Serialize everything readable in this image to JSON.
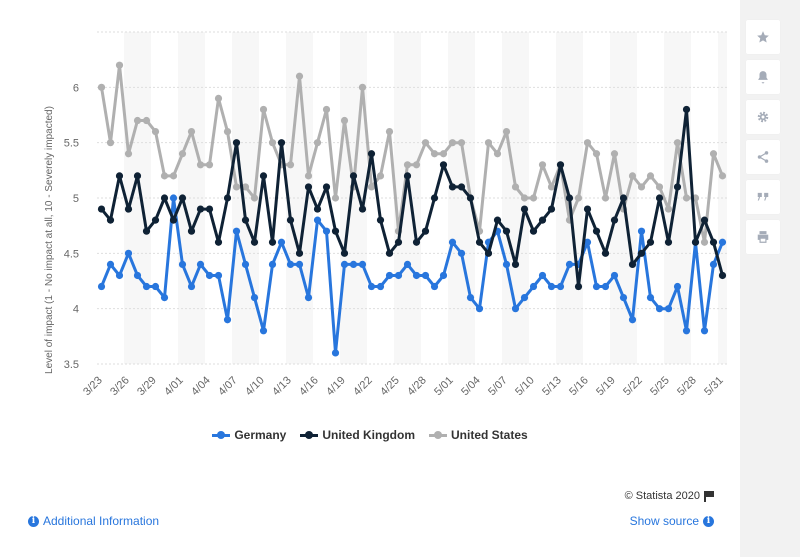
{
  "chart_data": {
    "type": "line",
    "title": "",
    "xlabel": "",
    "ylabel": "Level of impact (1 - No impact at all, 10 - Severely impacted)",
    "ylim": [
      3.5,
      6.5
    ],
    "yticks": [
      3.5,
      4,
      4.5,
      5,
      5.5,
      6
    ],
    "grid": true,
    "legend_position": "bottom",
    "x_tick_labels": [
      "3/23",
      "3/26",
      "3/29",
      "4/01",
      "4/04",
      "4/07",
      "4/10",
      "4/13",
      "4/16",
      "4/19",
      "4/22",
      "4/25",
      "4/28",
      "5/01",
      "5/04",
      "5/07",
      "5/10",
      "5/13",
      "5/16",
      "5/19",
      "5/22",
      "5/25",
      "5/28",
      "5/31"
    ],
    "x": [
      "3/23",
      "3/24",
      "3/25",
      "3/26",
      "3/27",
      "3/28",
      "3/29",
      "3/30",
      "3/31",
      "4/01",
      "4/02",
      "4/03",
      "4/04",
      "4/05",
      "4/06",
      "4/07",
      "4/08",
      "4/09",
      "4/10",
      "4/11",
      "4/12",
      "4/13",
      "4/14",
      "4/15",
      "4/16",
      "4/17",
      "4/18",
      "4/19",
      "4/20",
      "4/21",
      "4/22",
      "4/23",
      "4/24",
      "4/25",
      "4/26",
      "4/27",
      "4/28",
      "4/29",
      "4/30",
      "5/01",
      "5/02",
      "5/03",
      "5/04",
      "5/05",
      "5/06",
      "5/07",
      "5/08",
      "5/09",
      "5/10",
      "5/11",
      "5/12",
      "5/13",
      "5/14",
      "5/15",
      "5/16",
      "5/17",
      "5/18",
      "5/19",
      "5/20",
      "5/21",
      "5/22",
      "5/23",
      "5/24",
      "5/25",
      "5/26",
      "5/27",
      "5/28",
      "5/29",
      "5/30",
      "5/31"
    ],
    "series": [
      {
        "name": "Germany",
        "color": "#2876dd",
        "values": [
          4.2,
          4.4,
          4.3,
          4.5,
          4.3,
          4.2,
          4.2,
          4.1,
          5.0,
          4.4,
          4.2,
          4.4,
          4.3,
          4.3,
          3.9,
          4.7,
          4.4,
          4.1,
          3.8,
          4.4,
          4.6,
          4.4,
          4.4,
          4.1,
          4.8,
          4.7,
          3.6,
          4.4,
          4.4,
          4.4,
          4.2,
          4.2,
          4.3,
          4.3,
          4.4,
          4.3,
          4.3,
          4.2,
          4.3,
          4.6,
          4.5,
          4.1,
          4.0,
          4.6,
          4.7,
          4.4,
          4.0,
          4.1,
          4.2,
          4.3,
          4.2,
          4.2,
          4.4,
          4.4,
          4.6,
          4.2,
          4.2,
          4.3,
          4.1,
          3.9,
          4.7,
          4.1,
          4.0,
          4.0,
          4.2,
          3.8,
          4.6,
          3.8,
          4.4,
          4.6
        ]
      },
      {
        "name": "United Kingdom",
        "color": "#0f2235",
        "values": [
          4.9,
          4.8,
          5.2,
          4.9,
          5.2,
          4.7,
          4.8,
          5.0,
          4.8,
          5.0,
          4.7,
          4.9,
          4.9,
          4.6,
          5.0,
          5.5,
          4.8,
          4.6,
          5.2,
          4.6,
          5.5,
          4.8,
          4.5,
          5.1,
          4.9,
          5.1,
          4.7,
          4.5,
          5.2,
          4.9,
          5.4,
          4.8,
          4.5,
          4.6,
          5.2,
          4.6,
          4.7,
          5.0,
          5.3,
          5.1,
          5.1,
          5.0,
          4.6,
          4.5,
          4.8,
          4.7,
          4.4,
          4.9,
          4.7,
          4.8,
          4.9,
          5.3,
          5.0,
          4.2,
          4.9,
          4.7,
          4.5,
          4.8,
          5.0,
          4.4,
          4.5,
          4.6,
          5.0,
          4.6,
          5.1,
          5.8,
          4.6,
          4.8,
          4.6,
          4.3
        ]
      },
      {
        "name": "United States",
        "color": "#b0b0b0",
        "values": [
          6.0,
          5.5,
          6.2,
          5.4,
          5.7,
          5.7,
          5.6,
          5.2,
          5.2,
          5.4,
          5.6,
          5.3,
          5.3,
          5.9,
          5.6,
          5.1,
          5.1,
          5.0,
          5.8,
          5.5,
          5.3,
          5.3,
          6.1,
          5.2,
          5.5,
          5.8,
          5.0,
          5.7,
          5.1,
          6.0,
          5.1,
          5.2,
          5.6,
          4.7,
          5.3,
          5.3,
          5.5,
          5.4,
          5.4,
          5.5,
          5.5,
          5.0,
          4.7,
          5.5,
          5.4,
          5.6,
          5.1,
          5.0,
          5.0,
          5.3,
          5.1,
          5.3,
          4.8,
          5.0,
          5.5,
          5.4,
          5.0,
          5.4,
          4.9,
          5.2,
          5.1,
          5.2,
          5.1,
          4.9,
          5.5,
          5.0,
          5.0,
          4.6,
          5.4,
          5.2
        ]
      }
    ]
  },
  "footer": {
    "copyright": "© Statista 2020",
    "additional_info": "Additional Information",
    "show_source": "Show source"
  },
  "toolbar": {
    "icons": [
      "star-icon",
      "bell-icon",
      "gear-icon",
      "share-icon",
      "quote-icon",
      "print-icon"
    ]
  }
}
